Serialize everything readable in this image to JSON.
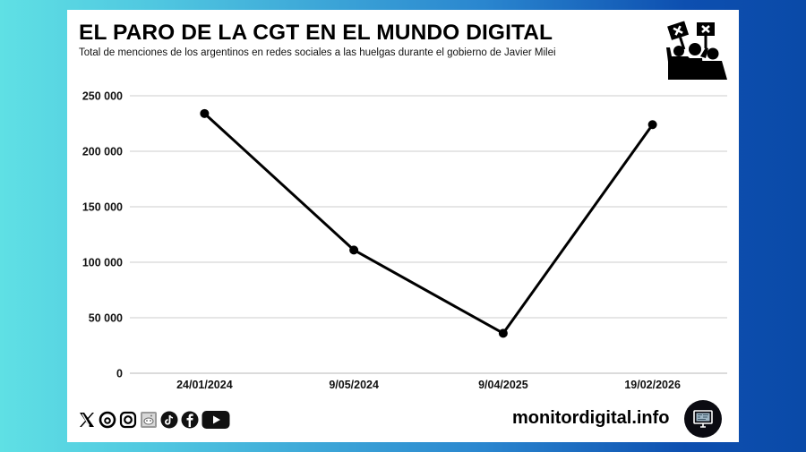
{
  "header": {
    "title": "EL PARO DE LA CGT EN EL MUNDO DIGITAL",
    "subtitle": "Total de menciones de los argentinos en redes sociales a las huelgas durante el gobierno de Javier Milei",
    "icon": "protest-crowd-icon"
  },
  "chart_data": {
    "type": "line",
    "title": "EL PARO DE LA CGT EN EL MUNDO DIGITAL",
    "subtitle": "Total de menciones de los argentinos en redes sociales a las huelgas durante el gobierno de Javier Milei",
    "categories": [
      "24/01/2024",
      "9/05/2024",
      "9/04/2025",
      "19/02/2026"
    ],
    "series": [
      {
        "name": "Menciones",
        "values": [
          234000,
          111000,
          36000,
          224000
        ],
        "color": "#000000"
      }
    ],
    "xlabel": "",
    "ylabel": "",
    "ylim": [
      0,
      250000
    ],
    "yticks": [
      0,
      50000,
      100000,
      150000,
      200000,
      250000
    ],
    "ytick_labels": [
      "0",
      "50 000",
      "100 000",
      "150 000",
      "200 000",
      "250 000"
    ],
    "grid": true,
    "legend": "none"
  },
  "footer": {
    "social_icons": [
      "x-icon",
      "threads-icon",
      "instagram-icon",
      "reddit-icon",
      "tiktok-icon",
      "facebook-icon",
      "youtube-icon"
    ],
    "site": "monitordigital.info",
    "site_icon": "monitor-icon"
  },
  "colors": {
    "background_left": "#5fe0e4",
    "background_right": "#0a4aa8",
    "line": "#000000",
    "grid": "#dddddd",
    "card": "#ffffff"
  }
}
